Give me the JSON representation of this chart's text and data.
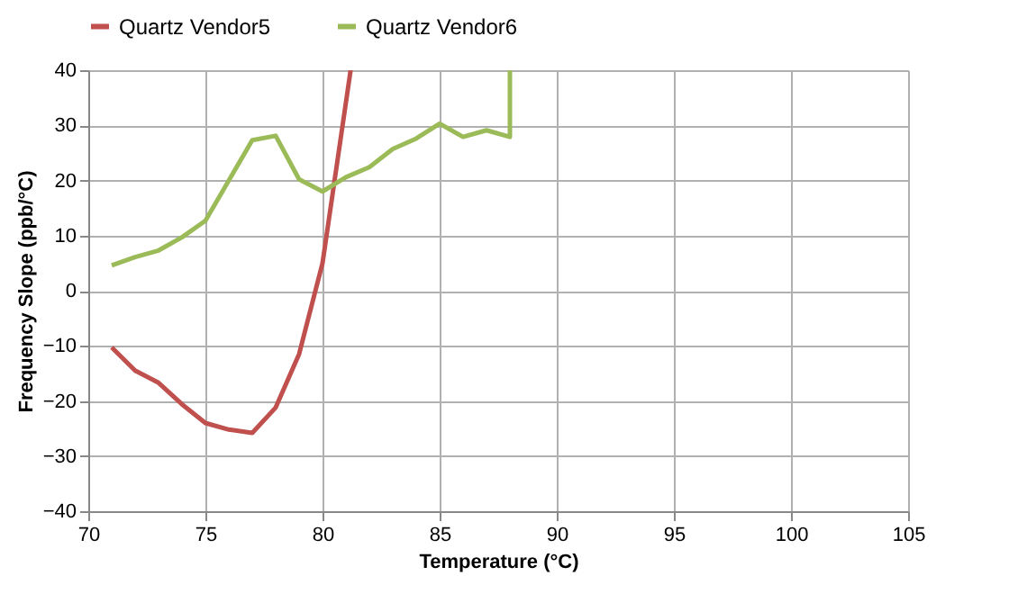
{
  "chart_data": {
    "type": "line",
    "xlabel": "Temperature (°C)",
    "ylabel": "Frequency Slope (ppb/°C)",
    "series": [
      {
        "name": "Quartz Vendor5",
        "color": "#c0504d",
        "x": [
          71,
          72,
          73,
          74,
          75,
          76,
          77,
          78,
          79,
          80,
          81.2
        ],
        "values": [
          -10.3,
          -14.5,
          -16.7,
          -20.6,
          -24,
          -25.2,
          -25.8,
          -21.2,
          -11.5,
          5,
          40
        ]
      },
      {
        "name": "Quartz Vendor6",
        "color": "#9bbb59",
        "x": [
          71,
          72,
          73,
          74,
          75,
          76,
          77,
          78,
          79,
          80,
          81,
          82,
          83,
          84,
          85,
          86,
          87,
          88,
          88
        ],
        "values": [
          4.6,
          6.1,
          7.3,
          9.7,
          12.7,
          20,
          27.3,
          28.1,
          20.2,
          18,
          20.6,
          22.4,
          25.7,
          27.6,
          30.3,
          27.9,
          29.1,
          27.9,
          40
        ]
      }
    ],
    "xlim": [
      70,
      105
    ],
    "xticks": [
      70,
      75,
      80,
      85,
      90,
      95,
      100,
      105
    ],
    "ylim": [
      -40,
      40
    ],
    "yticks": [
      -40,
      -30,
      -20,
      -10,
      0,
      10,
      20,
      30,
      40
    ],
    "grid": true,
    "legend": "top",
    "marker": "none",
    "line_style": "solid"
  }
}
